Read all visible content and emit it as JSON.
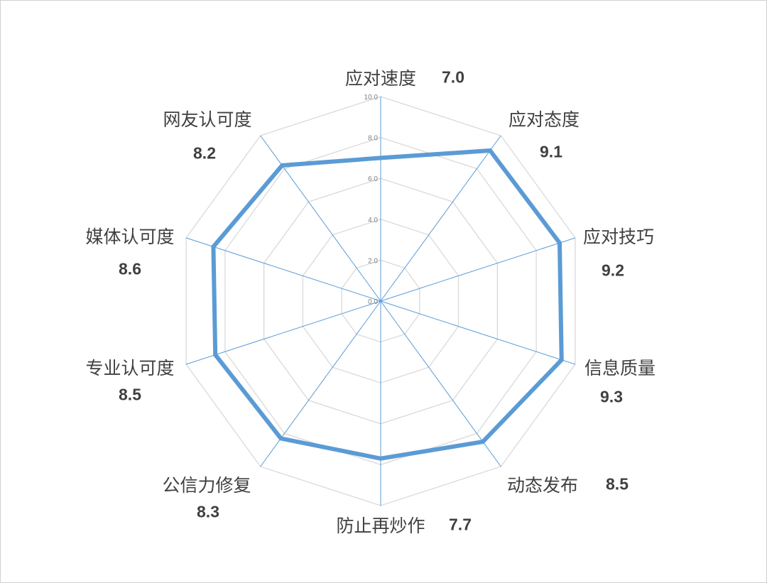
{
  "chart_data": {
    "type": "radar",
    "categories": [
      "应对速度",
      "应对态度",
      "应对技巧",
      "信息质量",
      "动态发布",
      "防止再炒作",
      "公信力修复",
      "专业认可度",
      "媒体认可度",
      "网友认可度"
    ],
    "values": [
      7.0,
      9.1,
      9.2,
      9.3,
      8.5,
      7.7,
      8.3,
      8.5,
      8.6,
      8.2
    ],
    "value_labels": [
      "7.0",
      "9.1",
      "9.2",
      "9.3",
      "8.5",
      "7.7",
      "8.3",
      "8.5",
      "8.6",
      "8.2"
    ],
    "rlim": [
      0,
      10
    ],
    "ticks": [
      "0.0",
      "2.0",
      "4.0",
      "6.0",
      "8.0",
      "10.0"
    ],
    "grid": true,
    "colors": {
      "series": "#5b9bd5",
      "grid": "#d9d9d9",
      "spokes": "#5b9bd5"
    }
  }
}
